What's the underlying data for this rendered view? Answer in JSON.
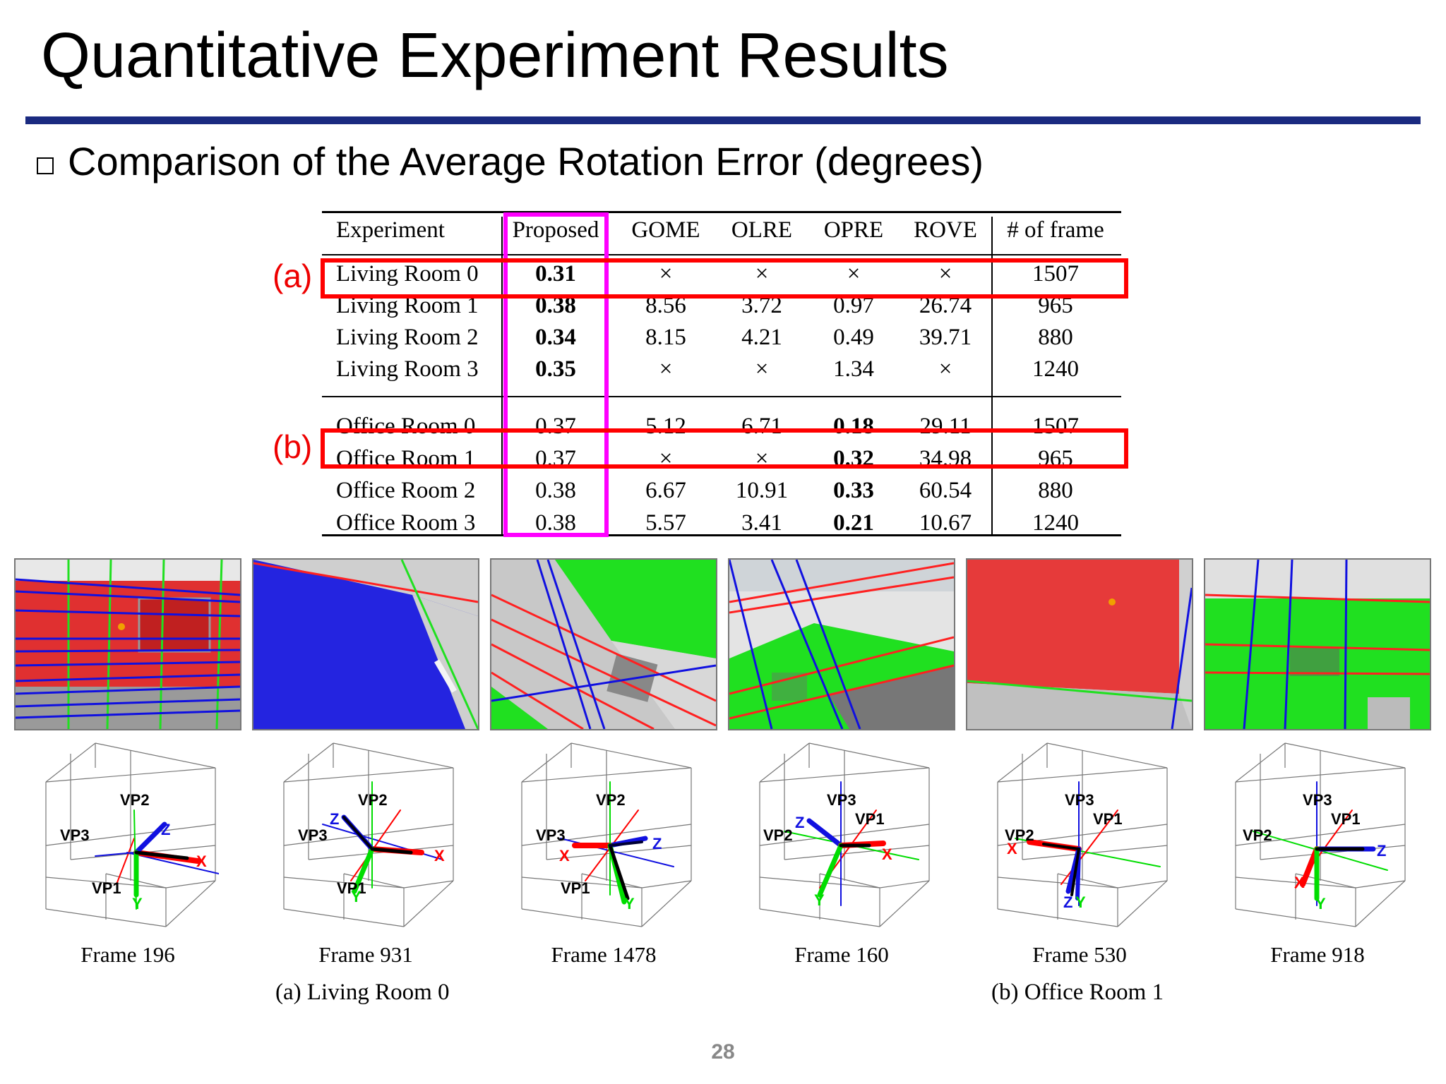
{
  "slide": {
    "title": "Quantitative Experiment Results",
    "bullet": "Comparison of the Average Rotation Error (degrees)",
    "page_number": "28",
    "accent_color": "#1a2a80"
  },
  "table": {
    "headers": [
      "Experiment",
      "Proposed",
      "GOME",
      "OLRE",
      "OPRE",
      "ROVE",
      "# of frame"
    ],
    "rows": [
      [
        "Living Room 0",
        "0.31",
        "×",
        "×",
        "×",
        "×",
        "1507"
      ],
      [
        "Living Room 1",
        "0.38",
        "8.56",
        "3.72",
        "0.97",
        "26.74",
        "965"
      ],
      [
        "Living Room 2",
        "0.34",
        "8.15",
        "4.21",
        "0.49",
        "39.71",
        "880"
      ],
      [
        "Living Room 3",
        "0.35",
        "×",
        "×",
        "1.34",
        "×",
        "1240"
      ],
      [
        "Office Room 0",
        "0.37",
        "5.12",
        "6.71",
        "0.18",
        "29.11",
        "1507"
      ],
      [
        "Office Room 1",
        "0.37",
        "×",
        "×",
        "0.32",
        "34.98",
        "965"
      ],
      [
        "Office Room 2",
        "0.38",
        "6.67",
        "10.91",
        "0.33",
        "60.54",
        "880"
      ],
      [
        "Office Room 3",
        "0.38",
        "5.57",
        "3.41",
        "0.21",
        "10.67",
        "1240"
      ]
    ],
    "bold_cells": [
      [
        0,
        1
      ],
      [
        1,
        1
      ],
      [
        2,
        1
      ],
      [
        3,
        1
      ],
      [
        4,
        4
      ],
      [
        5,
        4
      ],
      [
        6,
        4
      ],
      [
        7,
        4
      ]
    ],
    "highlight_labels": {
      "a": "(a)",
      "b": "(b)"
    },
    "highlight_color": "#ff0000",
    "proposed_highlight_color": "#ff00ff"
  },
  "figures": {
    "frames": [
      "Frame 196",
      "Frame 931",
      "Frame 1478",
      "Frame 160",
      "Frame 530",
      "Frame 918"
    ],
    "groups": [
      "(a) Living Room 0",
      "(b) Office Room 1"
    ],
    "axis_labels": {
      "vp1": "VP1",
      "vp2": "VP2",
      "vp3": "VP3",
      "x": "X",
      "y": "Y",
      "z": "Z"
    },
    "colors": {
      "red": "#ff0000",
      "green": "#00dd00",
      "blue": "#1010e0"
    }
  }
}
